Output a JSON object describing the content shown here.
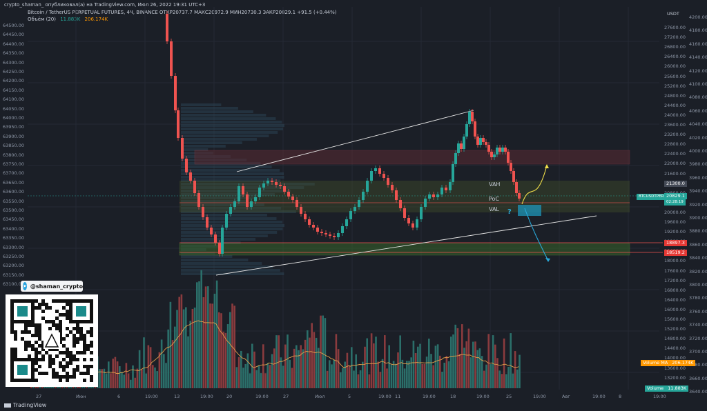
{
  "header": {
    "publisher_line": "crypto_shaman_ опубликовал(а) на TradingView.com, Июл 26, 2022 19:31 UTC+3",
    "symbol_line": "Bitcoin / TetherUS PERPETUAL FUTURES, 4Ч, BINANCE  ОТКР20737.7  МАКС20972.9  МИН20730.3  ЗАКР20829.1  +91.5 (+0.44%)",
    "volume_line_label": "Объём (20)",
    "volume_value_1": "11.883K",
    "volume_value_2": "206.174K"
  },
  "left_scale": [
    "64500.00",
    "64450.00",
    "64400.00",
    "64350.00",
    "64300.00",
    "64250.00",
    "64200.00",
    "64150.00",
    "64100.00",
    "64050.00",
    "64000.00",
    "63950.00",
    "63900.00",
    "63850.00",
    "63800.00",
    "63750.00",
    "63700.00",
    "63650.00",
    "63600.00",
    "63550.00",
    "63500.00",
    "63450.00",
    "63400.00",
    "63350.00",
    "63300.00",
    "63250.00",
    "63200.00",
    "63150.00",
    "63100.00"
  ],
  "right_scale": {
    "currency": "USDT",
    "ticks": [
      "27600.00",
      "27200.00",
      "26800.00",
      "26400.00",
      "26000.00",
      "25600.00",
      "25200.00",
      "24800.00",
      "24400.00",
      "24000.00",
      "23600.00",
      "23200.00",
      "22800.00",
      "22400.00",
      "22000.00",
      "21600.00",
      "21200.00",
      "20800.00",
      "20400.00",
      "20000.00",
      "19600.00",
      "19200.00",
      "18800.00",
      "18400.00",
      "18000.00",
      "17600.00",
      "17200.00",
      "16800.00",
      "16400.00",
      "16000.00",
      "15600.00",
      "15200.00",
      "14800.00",
      "14400.00",
      "14000.00",
      "13600.00",
      "13200.00"
    ]
  },
  "right_scale2": [
    "4200.00",
    "4180.00",
    "4160.00",
    "4140.00",
    "4120.00",
    "4100.00",
    "4080.00",
    "4060.00",
    "4040.00",
    "4020.00",
    "4000.00",
    "3980.00",
    "3960.00",
    "3940.00",
    "3920.00",
    "3900.00",
    "3880.00",
    "3860.00",
    "3840.00",
    "3820.00",
    "3800.00",
    "3780.00",
    "3760.00",
    "3740.00",
    "3720.00",
    "3700.00",
    "3680.00",
    "3660.00",
    "3640.00"
  ],
  "badges": {
    "symbol_label": "BTCUSDTPERP",
    "last_price": "20829.1",
    "countdown": "02:28:19",
    "level_1": "21300.0",
    "level_2": "18897.3",
    "level_3": "18519.2",
    "volume_ma_label": "Volume MA",
    "volume_ma_value": "206.174K",
    "volume_label": "Volume",
    "volume_value": "11.883K"
  },
  "annotations": {
    "vah": "VAH",
    "poc": "PoC",
    "val": "VAL",
    "question": "?"
  },
  "time_axis": [
    "27",
    "Июн",
    "6",
    "19:00",
    "13",
    "19:00",
    "20",
    "19:00",
    "27",
    "Июл",
    "5",
    "19:00",
    "11",
    "19:00",
    "18",
    "19:00",
    "25",
    "19:00",
    "Авг",
    "19:00",
    "8",
    "19:00"
  ],
  "branding": {
    "telegram": "@shaman_crypto",
    "tradingview": "TradingView"
  },
  "colors": {
    "bull": "#26a69a",
    "bear": "#ef5350",
    "background": "#1b1f27",
    "red_zone": "#ef5350",
    "green_zone": "#8bc34a",
    "accent": "#26a69a"
  }
}
